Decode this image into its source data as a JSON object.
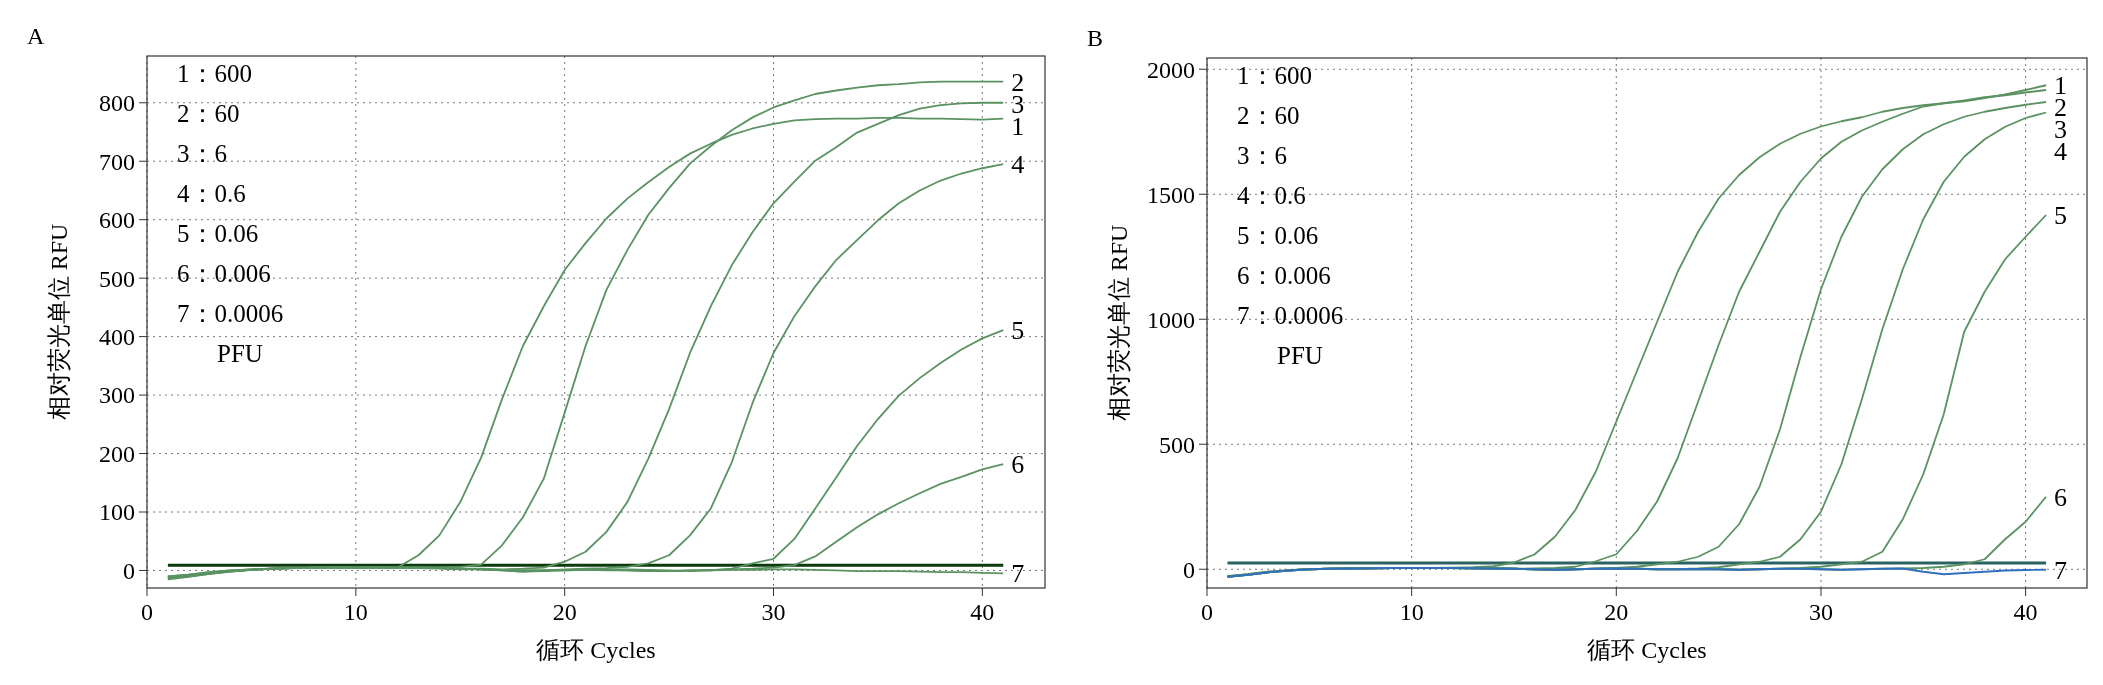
{
  "chart_data": [
    {
      "type": "line",
      "title": "A",
      "xlabel": "循环 Cycles",
      "ylabel": "相对荧光单位 RFU",
      "xlim": [
        0,
        43
      ],
      "ylim": [
        -30,
        880
      ],
      "xticks": [
        0,
        10,
        20,
        30,
        40
      ],
      "yticks": [
        0,
        100,
        200,
        300,
        400,
        500,
        600,
        700,
        800
      ],
      "grid": true,
      "line_style": "solid",
      "marker": "none",
      "annotations": [
        "1：600",
        "2：60",
        "3：6",
        "4：0.6",
        "5：0.06",
        "6：0.006",
        "7：0.0006",
        "PFU"
      ],
      "ref_lines": [
        {
          "axis": "y",
          "value": 9,
          "color": "#0b3b0b"
        }
      ],
      "x": [
        1,
        2,
        3,
        4,
        5,
        6,
        7,
        8,
        9,
        10,
        11,
        12,
        13,
        14,
        15,
        16,
        17,
        18,
        19,
        20,
        21,
        22,
        23,
        24,
        25,
        26,
        27,
        28,
        29,
        30,
        31,
        32,
        33,
        34,
        35,
        36,
        37,
        38,
        39,
        40,
        41
      ],
      "series": [
        {
          "name": "1",
          "color": "#5a9262",
          "values": [
            -15,
            -11,
            -6,
            -2,
            1,
            3,
            4,
            5,
            5,
            5,
            5,
            5,
            26,
            60,
            117,
            193,
            293,
            384,
            452,
            514,
            560,
            602,
            636,
            664,
            690,
            713,
            730,
            745,
            756,
            764,
            770,
            772,
            773,
            773,
            774,
            774,
            773,
            773,
            772,
            771,
            773
          ]
        },
        {
          "name": "2",
          "color": "#5a9262",
          "values": [
            -12,
            -8,
            -4,
            -1,
            2,
            3,
            4,
            5,
            5,
            5,
            5,
            5,
            5,
            5,
            6,
            10,
            43,
            91,
            157,
            270,
            384,
            480,
            548,
            608,
            654,
            696,
            726,
            753,
            775,
            792,
            804,
            815,
            821,
            826,
            830,
            832,
            835,
            836,
            836,
            836,
            836
          ]
        },
        {
          "name": "3",
          "color": "#5a9262",
          "values": [
            -10,
            -7,
            -3,
            0,
            2,
            3,
            4,
            4,
            5,
            5,
            5,
            4,
            4,
            4,
            3,
            3,
            2,
            3,
            5,
            15,
            32,
            66,
            117,
            191,
            276,
            372,
            452,
            522,
            579,
            628,
            665,
            701,
            724,
            749,
            764,
            779,
            790,
            796,
            799,
            800,
            800
          ]
        },
        {
          "name": "4",
          "color": "#5a9262",
          "values": [
            -13,
            -9,
            -5,
            -1,
            1,
            3,
            4,
            5,
            5,
            5,
            5,
            5,
            4,
            3,
            2,
            2,
            0,
            -2,
            0,
            2,
            3,
            4,
            6,
            12,
            26,
            60,
            106,
            185,
            287,
            372,
            435,
            486,
            531,
            565,
            599,
            628,
            650,
            667,
            679,
            688,
            695
          ]
        },
        {
          "name": "5",
          "color": "#5a9262",
          "values": [
            -14,
            -10,
            -6,
            -2,
            1,
            3,
            4,
            5,
            5,
            5,
            5,
            5,
            5,
            4,
            3,
            2,
            1,
            0,
            0,
            0,
            1,
            2,
            2,
            1,
            0,
            -1,
            0,
            3,
            12,
            20,
            54,
            106,
            159,
            213,
            259,
            299,
            329,
            355,
            378,
            397,
            411
          ]
        },
        {
          "name": "6",
          "color": "#5a9262",
          "values": [
            -12,
            -8,
            -4,
            -1,
            1,
            3,
            4,
            5,
            5,
            5,
            5,
            5,
            5,
            4,
            3,
            2,
            0,
            -2,
            -1,
            0,
            1,
            1,
            0,
            -1,
            -1,
            0,
            1,
            2,
            3,
            5,
            9,
            24,
            49,
            74,
            96,
            115,
            132,
            148,
            160,
            173,
            182
          ]
        },
        {
          "name": "7",
          "color": "#5a9262",
          "values": [
            -10,
            -7,
            -3,
            0,
            2,
            3,
            4,
            5,
            5,
            5,
            5,
            5,
            5,
            4,
            3,
            2,
            1,
            0,
            0,
            1,
            1,
            0,
            0,
            -1,
            -1,
            0,
            0,
            1,
            1,
            2,
            2,
            1,
            0,
            -1,
            -1,
            -1,
            -2,
            -3,
            -3,
            -4,
            -5
          ]
        }
      ]
    },
    {
      "type": "line",
      "title": "B",
      "xlabel": "循环 Cycles",
      "ylabel": "相对荧光单位 RFU",
      "xlim": [
        0,
        43
      ],
      "ylim": [
        -75,
        2045
      ],
      "xticks": [
        0,
        10,
        20,
        30,
        40
      ],
      "yticks": [
        0,
        500,
        1000,
        1500,
        2000
      ],
      "grid": true,
      "line_style": "solid",
      "marker": "none",
      "annotations": [
        "1：600",
        "2：60",
        "3：6",
        "4：0.6",
        "5：0.06",
        "6：0.006",
        "7：0.0006",
        "PFU"
      ],
      "ref_lines": [
        {
          "axis": "y",
          "value": 25,
          "color": "#2a6262"
        }
      ],
      "x": [
        1,
        2,
        3,
        4,
        5,
        6,
        7,
        8,
        9,
        10,
        11,
        12,
        13,
        14,
        15,
        16,
        17,
        18,
        19,
        20,
        21,
        22,
        23,
        24,
        25,
        26,
        27,
        28,
        29,
        30,
        31,
        32,
        33,
        34,
        35,
        36,
        37,
        38,
        39,
        40,
        41
      ],
      "series": [
        {
          "name": "1",
          "color": "#5a9262",
          "values": [
            -30,
            -22,
            -12,
            -5,
            0,
            2,
            3,
            4,
            5,
            5,
            5,
            6,
            8,
            12,
            27,
            59,
            130,
            237,
            391,
            591,
            791,
            991,
            1190,
            1350,
            1483,
            1577,
            1648,
            1702,
            1742,
            1771,
            1792,
            1808,
            1830,
            1845,
            1856,
            1864,
            1872,
            1885,
            1899,
            1917,
            1936
          ]
        },
        {
          "name": "2",
          "color": "#5a9262",
          "values": [
            -28,
            -20,
            -10,
            -4,
            0,
            2,
            3,
            4,
            5,
            5,
            5,
            5,
            4,
            3,
            2,
            3,
            5,
            10,
            32,
            60,
            152,
            272,
            445,
            671,
            897,
            1110,
            1270,
            1430,
            1550,
            1643,
            1710,
            1755,
            1790,
            1822,
            1851,
            1864,
            1875,
            1888,
            1896,
            1907,
            1917
          ]
        },
        {
          "name": "3",
          "color": "#5a9262",
          "values": [
            -30,
            -22,
            -12,
            -5,
            0,
            2,
            3,
            4,
            5,
            5,
            5,
            5,
            4,
            3,
            2,
            0,
            -2,
            0,
            2,
            5,
            10,
            20,
            30,
            50,
            90,
            180,
            330,
            560,
            850,
            1120,
            1330,
            1490,
            1600,
            1680,
            1740,
            1780,
            1810,
            1830,
            1845,
            1858,
            1869
          ]
        },
        {
          "name": "4",
          "color": "#5a9262",
          "values": [
            -28,
            -20,
            -10,
            -4,
            0,
            2,
            3,
            4,
            5,
            5,
            5,
            5,
            4,
            3,
            2,
            0,
            -2,
            0,
            2,
            3,
            2,
            0,
            0,
            3,
            8,
            20,
            30,
            50,
            120,
            230,
            420,
            680,
            960,
            1200,
            1400,
            1550,
            1650,
            1720,
            1770,
            1805,
            1827
          ]
        },
        {
          "name": "5",
          "color": "#5a9262",
          "values": [
            -30,
            -22,
            -12,
            -5,
            0,
            2,
            3,
            4,
            5,
            5,
            5,
            5,
            4,
            3,
            2,
            0,
            -2,
            0,
            2,
            3,
            2,
            0,
            0,
            1,
            0,
            -2,
            0,
            2,
            5,
            10,
            20,
            30,
            70,
            200,
            380,
            620,
            950,
            1110,
            1240,
            1330,
            1417
          ]
        },
        {
          "name": "6",
          "color": "#5a9262",
          "values": [
            -30,
            -22,
            -12,
            -5,
            0,
            2,
            3,
            4,
            5,
            5,
            5,
            5,
            4,
            3,
            2,
            0,
            -2,
            0,
            2,
            3,
            2,
            0,
            0,
            1,
            0,
            -2,
            0,
            2,
            2,
            0,
            -2,
            0,
            2,
            3,
            5,
            10,
            20,
            40,
            120,
            190,
            290
          ]
        },
        {
          "name": "7",
          "color": "#2f6fc0",
          "values": [
            -30,
            -22,
            -12,
            -5,
            0,
            2,
            3,
            4,
            5,
            5,
            5,
            5,
            4,
            3,
            2,
            0,
            -2,
            0,
            2,
            3,
            2,
            0,
            0,
            1,
            0,
            -2,
            0,
            2,
            2,
            0,
            -2,
            0,
            2,
            3,
            -10,
            -20,
            -15,
            -10,
            -5,
            -3,
            -2
          ]
        }
      ]
    }
  ]
}
